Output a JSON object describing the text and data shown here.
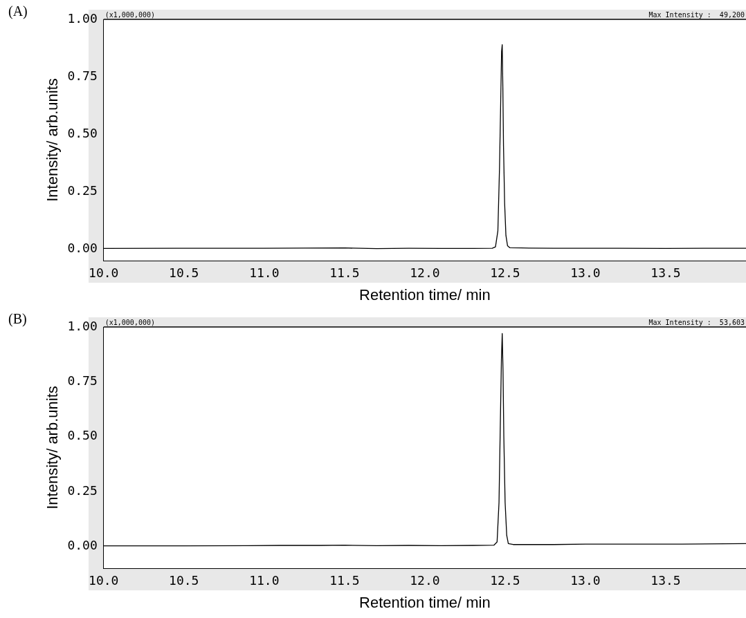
{
  "chart_data": [
    {
      "type": "line",
      "title": "(A)",
      "xlabel": "Retention time/ min",
      "ylabel": "Intensity/ arb.units",
      "annotations": [
        "(x1,000,000)",
        "Max Intensity :  49,200"
      ],
      "xlim": [
        10.0,
        14.0
      ],
      "ylim": [
        -0.05,
        1.0
      ],
      "xticks": [
        {
          "value": 10.0,
          "label": "10.0"
        },
        {
          "value": 10.5,
          "label": "10.5"
        },
        {
          "value": 11.0,
          "label": "11.0"
        },
        {
          "value": 11.5,
          "label": "11.5"
        },
        {
          "value": 12.0,
          "label": "12.0"
        },
        {
          "value": 12.5,
          "label": "12.5"
        },
        {
          "value": 13.0,
          "label": "13.0"
        },
        {
          "value": 13.5,
          "label": "13.5"
        }
      ],
      "yticks": [
        {
          "value": 0,
          "label": "0.00"
        },
        {
          "value": 0.25,
          "label": "0.25"
        },
        {
          "value": 0.5,
          "label": "0.50"
        },
        {
          "value": 0.75,
          "label": "0.75"
        },
        {
          "value": 1.0,
          "label": "1.00"
        }
      ],
      "grid": false,
      "legend": false,
      "marker": "none",
      "line_style": "solid",
      "series": [
        {
          "color": "#000000",
          "x": [
            10.0,
            10.5,
            11.0,
            11.5,
            11.7,
            11.9,
            12.1,
            12.3,
            12.42,
            12.44,
            12.455,
            12.465,
            12.472,
            12.478,
            12.482,
            12.486,
            12.49,
            12.497,
            12.505,
            12.515,
            12.53,
            12.6,
            12.8,
            13.0,
            13.2,
            13.5,
            13.8,
            14.0
          ],
          "values": [
            0.003,
            0.004,
            0.004,
            0.005,
            0.002,
            0.004,
            0.003,
            0.003,
            0.004,
            0.01,
            0.08,
            0.35,
            0.62,
            0.86,
            0.89,
            0.7,
            0.45,
            0.2,
            0.06,
            0.015,
            0.006,
            0.005,
            0.004,
            0.004,
            0.004,
            0.003,
            0.004,
            0.004
          ]
        }
      ]
    },
    {
      "type": "line",
      "title": "(B)",
      "xlabel": "Retention time/ min",
      "ylabel": "Intensity/ arb.units",
      "annotations": [
        "(x1,000,000)",
        "Max Intensity :  53,603"
      ],
      "xlim": [
        10.0,
        14.0
      ],
      "ylim": [
        -0.1,
        1.0
      ],
      "xticks": [
        {
          "value": 10.0,
          "label": "10.0"
        },
        {
          "value": 10.5,
          "label": "10.5"
        },
        {
          "value": 11.0,
          "label": "11.0"
        },
        {
          "value": 11.5,
          "label": "11.5"
        },
        {
          "value": 12.0,
          "label": "12.0"
        },
        {
          "value": 12.5,
          "label": "12.5"
        },
        {
          "value": 13.0,
          "label": "13.0"
        },
        {
          "value": 13.5,
          "label": "13.5"
        }
      ],
      "yticks": [
        {
          "value": 0,
          "label": "0.00"
        },
        {
          "value": 0.25,
          "label": "0.25"
        },
        {
          "value": 0.5,
          "label": "0.50"
        },
        {
          "value": 0.75,
          "label": "0.75"
        },
        {
          "value": 1.0,
          "label": "1.00"
        }
      ],
      "grid": false,
      "legend": false,
      "marker": "none",
      "line_style": "solid",
      "series": [
        {
          "color": "#000000",
          "x": [
            10.0,
            10.5,
            10.9,
            11.1,
            11.35,
            11.5,
            11.7,
            11.9,
            12.1,
            12.3,
            12.43,
            12.45,
            12.462,
            12.47,
            12.477,
            12.482,
            12.487,
            12.492,
            12.5,
            12.51,
            12.52,
            12.55,
            12.8,
            13.0,
            13.3,
            13.6,
            14.0
          ],
          "values": [
            0.002,
            0.002,
            0.003,
            0.004,
            0.004,
            0.005,
            0.003,
            0.004,
            0.003,
            0.004,
            0.005,
            0.02,
            0.2,
            0.55,
            0.85,
            0.97,
            0.8,
            0.5,
            0.2,
            0.05,
            0.012,
            0.008,
            0.008,
            0.01,
            0.01,
            0.01,
            0.012
          ]
        }
      ]
    }
  ]
}
